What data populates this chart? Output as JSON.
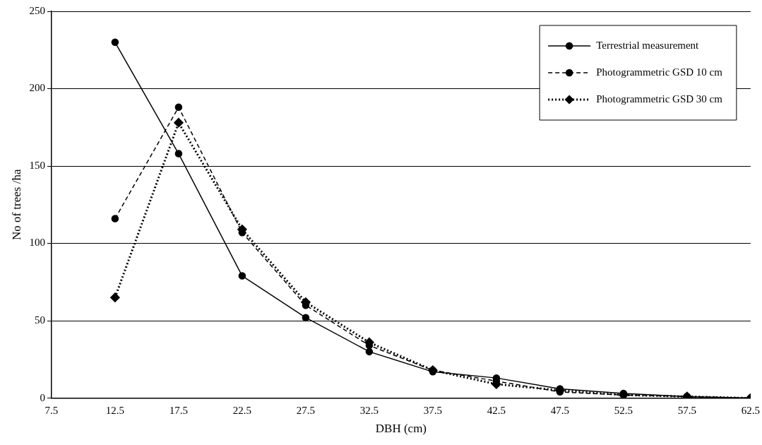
{
  "chart_data": {
    "type": "line",
    "xlabel": "DBH (cm)",
    "ylabel": "No of trees /ha",
    "x": [
      12.5,
      17.5,
      22.5,
      27.5,
      32.5,
      37.5,
      42.5,
      47.5,
      52.5,
      57.5,
      62.5
    ],
    "xlim": [
      7.5,
      62.5
    ],
    "xticks": [
      7.5,
      12.5,
      17.5,
      22.5,
      27.5,
      32.5,
      37.5,
      42.5,
      47.5,
      52.5,
      57.5,
      62.5
    ],
    "ylim": [
      0,
      250
    ],
    "yticks": [
      0,
      50,
      100,
      150,
      200,
      250
    ],
    "grid": "y",
    "legend": "top right",
    "series": [
      {
        "name": "Terrestrial measurement",
        "color": "#000000",
        "marker": "circle",
        "line_style": "solid",
        "values": [
          230,
          158,
          79,
          52,
          30,
          17,
          13,
          6,
          3,
          1,
          0
        ]
      },
      {
        "name": "Photogrammetric GSD 10 cm",
        "color": "#000000",
        "marker": "circle",
        "line_style": "dashed",
        "values": [
          116,
          188,
          107,
          60,
          34,
          18,
          11,
          4,
          2,
          1,
          0
        ]
      },
      {
        "name": "Photogrammetric GSD 30 cm",
        "color": "#000000",
        "marker": "diamond",
        "line_style": "dotted",
        "values": [
          65,
          178,
          109,
          62,
          36,
          18,
          9,
          5,
          2,
          1,
          0
        ]
      }
    ]
  }
}
